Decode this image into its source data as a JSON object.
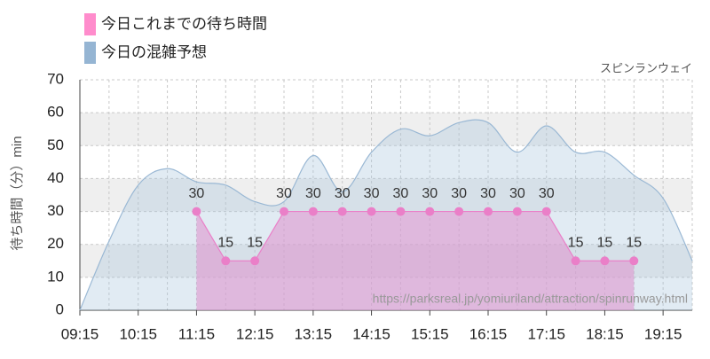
{
  "chart_data": {
    "type": "area",
    "title": "スピンランウェイ",
    "y_label": "待ち時間（分）min",
    "source": "https://parksreal.jp/yomiuriland/attraction/spinrunway.html",
    "x": [
      "09:15",
      null,
      "10:15",
      null,
      "11:15",
      null,
      "12:15",
      null,
      "13:15",
      null,
      "14:15",
      null,
      "15:15",
      null,
      "16:15",
      null,
      "17:15",
      null,
      "18:15",
      null,
      "19:15",
      null
    ],
    "series": [
      {
        "name": "今日これまでの待ち時間",
        "color": "#ea7fc8",
        "values": [
          null,
          null,
          null,
          null,
          30,
          15,
          15,
          30,
          30,
          30,
          30,
          30,
          30,
          30,
          30,
          30,
          30,
          15,
          15,
          15,
          null,
          null
        ]
      },
      {
        "name": "今日の混雑予想",
        "color": "#9ab8d4",
        "values": [
          0,
          21,
          38,
          43,
          39,
          38,
          33,
          33,
          47,
          36,
          48,
          55,
          53,
          57,
          57,
          48,
          56,
          48,
          48,
          41,
          34,
          15
        ]
      }
    ],
    "ylim": [
      0,
      70
    ],
    "yticks": [
      0,
      10,
      20,
      30,
      40,
      50,
      60,
      70
    ],
    "grid": true
  }
}
